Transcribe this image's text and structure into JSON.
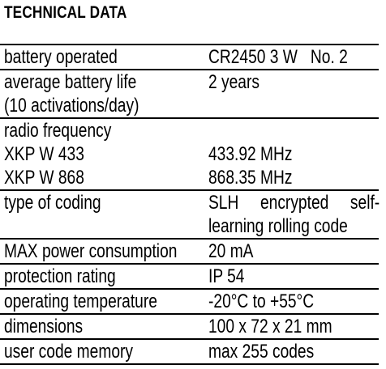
{
  "title": "TECHNICAL DATA",
  "rows": [
    {
      "lines": [
        [
          "battery operated",
          "CR2450 3 W   No. 2"
        ]
      ]
    },
    {
      "lines": [
        [
          "average battery life",
          "2 years"
        ],
        [
          "(10 activations/day)",
          ""
        ]
      ]
    },
    {
      "lines": [
        [
          "radio frequency",
          ""
        ],
        [
          "XKP W 433",
          "433.92 MHz"
        ],
        [
          "XKP W 868",
          "868.35 MHz"
        ]
      ]
    },
    {
      "lines": [
        [
          "type of coding",
          "SLH encrypted self-"
        ],
        [
          "",
          "learning rolling code"
        ]
      ]
    },
    {
      "lines": [
        [
          "MAX power consumption",
          "20 mA"
        ]
      ]
    },
    {
      "lines": [
        [
          "protection rating",
          "IP 54"
        ]
      ]
    },
    {
      "lines": [
        [
          "operating temperature",
          "-20°C to +55°C"
        ]
      ]
    },
    {
      "lines": [
        [
          "dimensions",
          "100 x 72 x 21 mm"
        ]
      ]
    },
    {
      "lines": [
        [
          "user code memory",
          "max 255 codes"
        ]
      ]
    }
  ]
}
